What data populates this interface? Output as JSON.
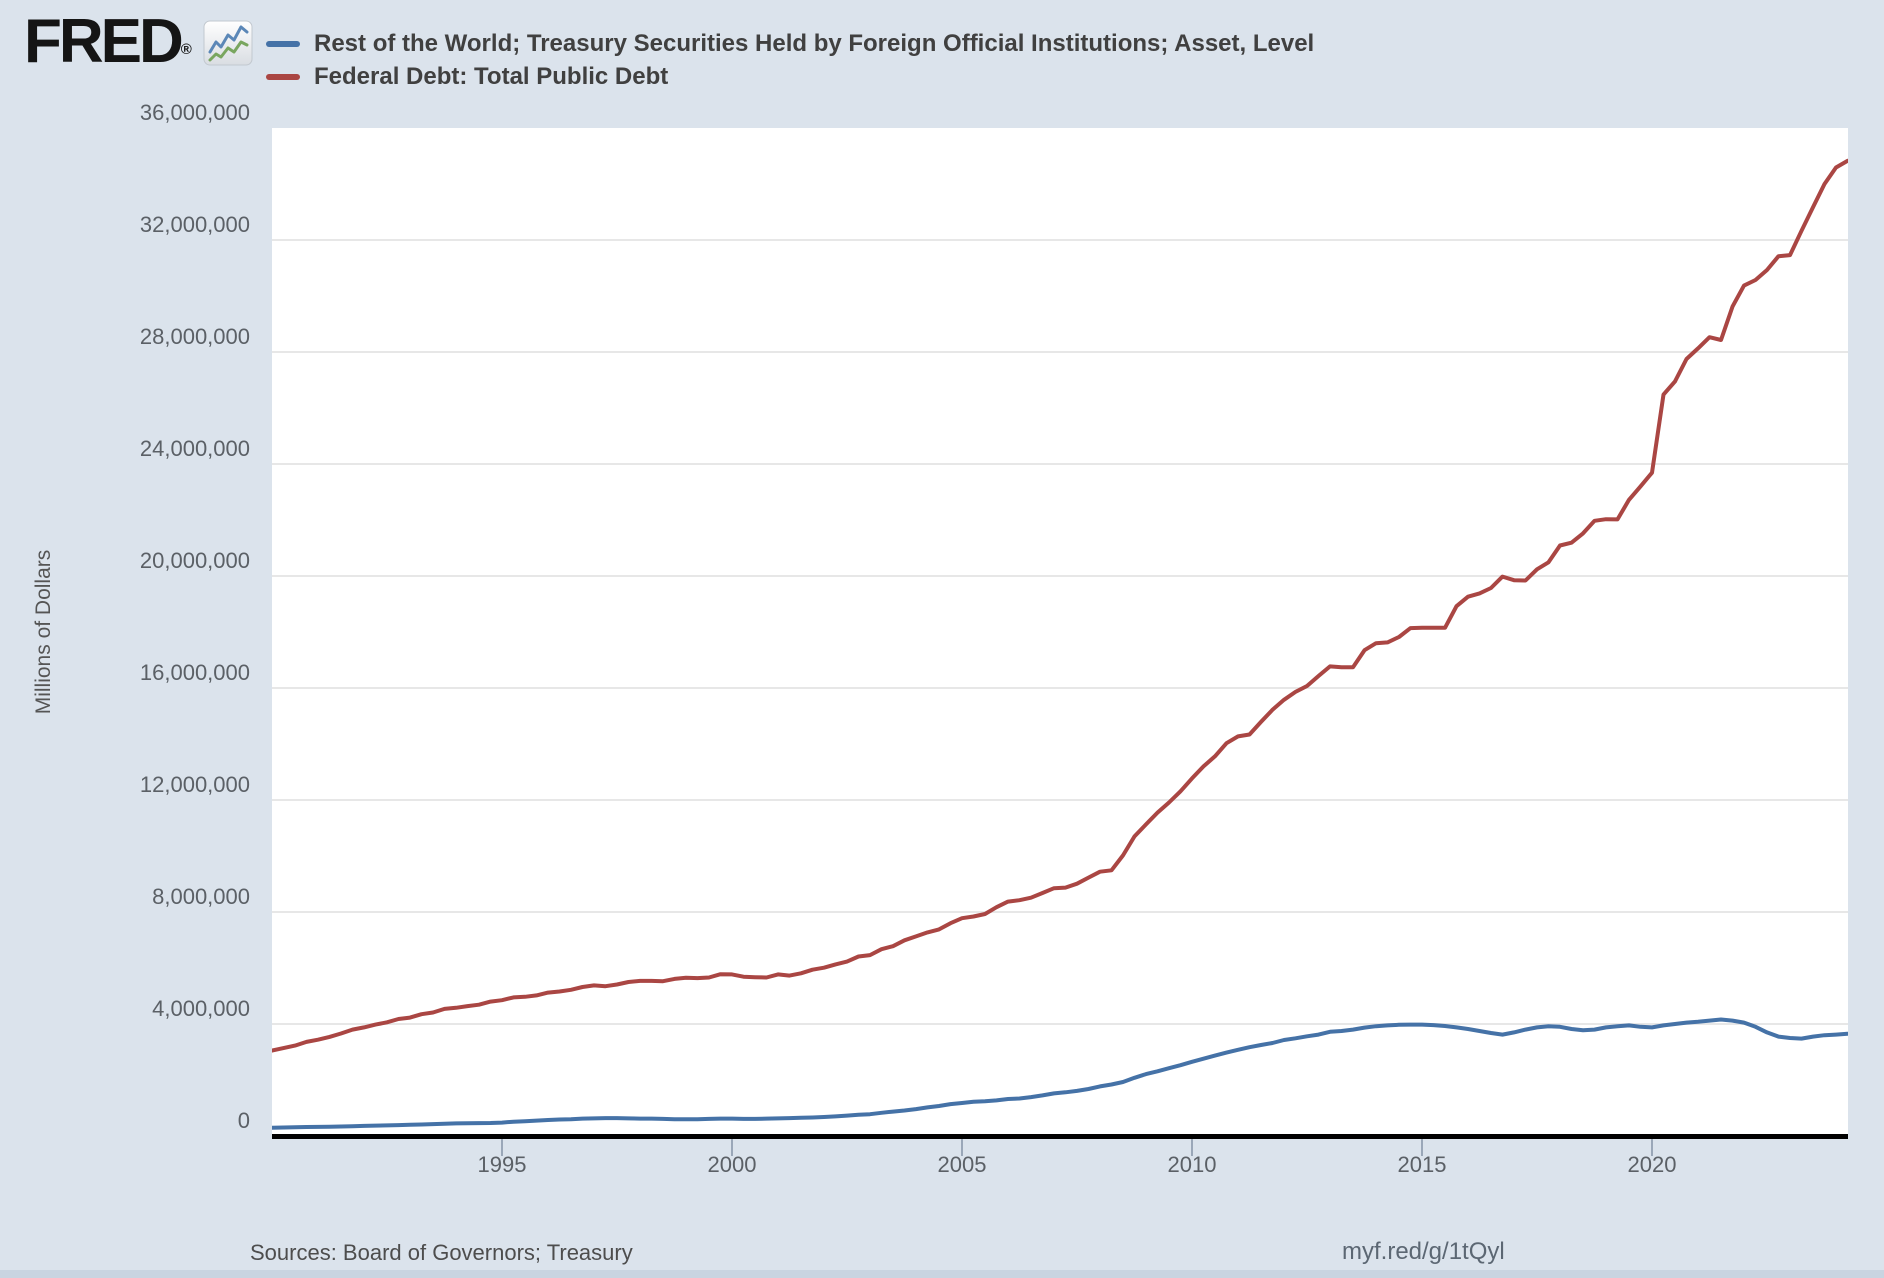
{
  "header": {
    "logo_text": "FRED",
    "logo_registered": "®",
    "legend": [
      {
        "label": "Rest of the World; Treasury Securities Held by Foreign Official Institutions; Asset, Level",
        "color": "#4572a7"
      },
      {
        "label": "Federal Debt: Total Public Debt",
        "color": "#aa4643"
      }
    ]
  },
  "y_axis": {
    "title": "Millions of Dollars",
    "ticks": [
      {
        "label": "36,000,000",
        "value": 36000000
      },
      {
        "label": "32,000,000",
        "value": 32000000
      },
      {
        "label": "28,000,000",
        "value": 28000000
      },
      {
        "label": "24,000,000",
        "value": 24000000
      },
      {
        "label": "20,000,000",
        "value": 20000000
      },
      {
        "label": "16,000,000",
        "value": 16000000
      },
      {
        "label": "12,000,000",
        "value": 12000000
      },
      {
        "label": "8,000,000",
        "value": 8000000
      },
      {
        "label": "4,000,000",
        "value": 4000000
      },
      {
        "label": "0",
        "value": 0
      }
    ]
  },
  "x_axis": {
    "ticks": [
      {
        "label": "1995",
        "year": 1995
      },
      {
        "label": "2000",
        "year": 2000
      },
      {
        "label": "2005",
        "year": 2005
      },
      {
        "label": "2010",
        "year": 2010
      },
      {
        "label": "2015",
        "year": 2015
      },
      {
        "label": "2020",
        "year": 2020
      }
    ]
  },
  "footer": {
    "sources": "Sources: Board of Governors; Treasury",
    "share_url": "myf.red/g/1tQyl"
  },
  "colors": {
    "page_bg": "#dbe3ec",
    "plot_bg": "#ffffff",
    "grid": "#e7e7e7",
    "zero_line": "#000000",
    "tick": "#9aa7b8",
    "blue_series": "#4572a7",
    "red_series": "#aa4643"
  },
  "chart_data": {
    "type": "line",
    "title": "",
    "xlabel": "",
    "ylabel": "Millions of Dollars",
    "x_unit": "decimal_year",
    "x_start": 1990.0,
    "x_step": 0.25,
    "xlim": [
      1990.0,
      2024.26
    ],
    "ylim": [
      0,
      36000000
    ],
    "grid": "horizontal-only",
    "legend_position": "top-left",
    "series": [
      {
        "name": "Rest of the World; Treasury Securities Held by Foreign Official Institutions; Asset, Level",
        "color": "#4572a7",
        "values": [
          295000,
          305000,
          315000,
          320000,
          325000,
          330000,
          340000,
          350000,
          360000,
          370000,
          380000,
          390000,
          400000,
          410000,
          425000,
          440000,
          450000,
          455000,
          460000,
          465000,
          480000,
          510000,
          530000,
          550000,
          570000,
          590000,
          600000,
          620000,
          630000,
          640000,
          640000,
          630000,
          620000,
          620000,
          610000,
          600000,
          600000,
          600000,
          610000,
          620000,
          620000,
          610000,
          610000,
          620000,
          630000,
          640000,
          650000,
          660000,
          680000,
          700000,
          730000,
          760000,
          780000,
          830000,
          870000,
          910000,
          960000,
          1020000,
          1070000,
          1140000,
          1180000,
          1220000,
          1240000,
          1270000,
          1320000,
          1340000,
          1390000,
          1450000,
          1520000,
          1560000,
          1610000,
          1680000,
          1770000,
          1840000,
          1930000,
          2080000,
          2210000,
          2310000,
          2420000,
          2530000,
          2650000,
          2760000,
          2870000,
          2980000,
          3080000,
          3170000,
          3250000,
          3320000,
          3430000,
          3490000,
          3560000,
          3620000,
          3720000,
          3750000,
          3800000,
          3870000,
          3920000,
          3950000,
          3970000,
          3980000,
          3980000,
          3960000,
          3930000,
          3880000,
          3820000,
          3750000,
          3680000,
          3620000,
          3700000,
          3800000,
          3880000,
          3920000,
          3900000,
          3820000,
          3780000,
          3800000,
          3880000,
          3920000,
          3950000,
          3900000,
          3880000,
          3950000,
          4000000,
          4050000,
          4080000,
          4120000,
          4160000,
          4120000,
          4050000,
          3900000,
          3700000,
          3550000,
          3500000,
          3480000,
          3550000,
          3600000,
          3620000,
          3650000
        ]
      },
      {
        "name": "Federal Debt: Total Public Debt",
        "color": "#aa4643",
        "values": [
          3050000,
          3140000,
          3230000,
          3360000,
          3440000,
          3540000,
          3660000,
          3800000,
          3880000,
          3980000,
          4060000,
          4180000,
          4230000,
          4350000,
          4410000,
          4540000,
          4580000,
          4640000,
          4690000,
          4800000,
          4850000,
          4950000,
          4970000,
          5020000,
          5120000,
          5160000,
          5220000,
          5320000,
          5380000,
          5350000,
          5410000,
          5500000,
          5540000,
          5540000,
          5530000,
          5610000,
          5650000,
          5640000,
          5660000,
          5780000,
          5770000,
          5690000,
          5670000,
          5660000,
          5770000,
          5730000,
          5810000,
          5940000,
          6010000,
          6130000,
          6230000,
          6410000,
          6460000,
          6670000,
          6780000,
          6990000,
          7130000,
          7270000,
          7380000,
          7600000,
          7780000,
          7840000,
          7930000,
          8170000,
          8370000,
          8420000,
          8510000,
          8680000,
          8850000,
          8870000,
          9010000,
          9230000,
          9440000,
          9490000,
          10020000,
          10700000,
          11130000,
          11550000,
          11910000,
          12310000,
          12770000,
          13200000,
          13560000,
          14030000,
          14270000,
          14340000,
          14790000,
          15220000,
          15580000,
          15860000,
          16070000,
          16430000,
          16770000,
          16740000,
          16740000,
          17350000,
          17600000,
          17630000,
          17820000,
          18140000,
          18150000,
          18150000,
          18150000,
          18920000,
          19260000,
          19380000,
          19570000,
          19980000,
          19850000,
          19840000,
          20240000,
          20490000,
          21090000,
          21190000,
          21520000,
          21970000,
          22030000,
          22020000,
          22720000,
          23200000,
          23690000,
          26480000,
          26950000,
          27750000,
          28130000,
          28530000,
          28430000,
          29620000,
          30370000,
          30570000,
          30930000,
          31420000,
          31460000,
          32330000,
          33170000,
          34000000,
          34590000,
          34830000
        ]
      }
    ]
  }
}
